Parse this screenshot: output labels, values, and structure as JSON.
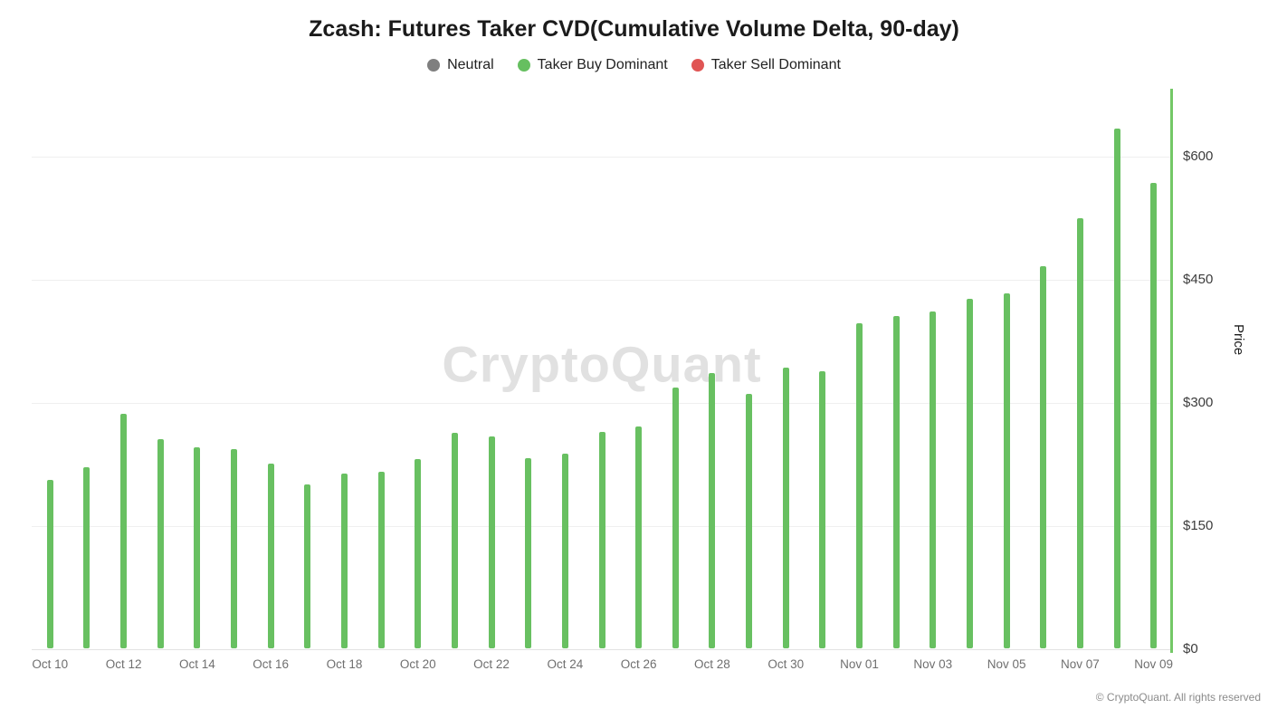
{
  "title": "Zcash: Futures Taker CVD(Cumulative Volume Delta, 90-day)",
  "watermark": "CryptoQuant",
  "footer": "© CryptoQuant. All rights reserved",
  "legend": {
    "items": [
      {
        "label": "Neutral",
        "color": "#7f7f7f"
      },
      {
        "label": "Taker Buy Dominant",
        "color": "#66bf60"
      },
      {
        "label": "Taker Sell Dominant",
        "color": "#e05554"
      }
    ]
  },
  "y_axis": {
    "label": "Price",
    "ticks": [
      {
        "label": "$0",
        "value": 0
      },
      {
        "label": "$150",
        "value": 150
      },
      {
        "label": "$300",
        "value": 300
      },
      {
        "label": "$450",
        "value": 450
      },
      {
        "label": "$600",
        "value": 600
      }
    ]
  },
  "chart_data": {
    "type": "bar",
    "title": "Zcash: Futures Taker CVD(Cumulative Volume Delta, 90-day)",
    "series_name": "Taker Buy Dominant",
    "xlabel": "",
    "ylabel": "Price",
    "ylim": [
      0,
      680
    ],
    "grid": "horizontal",
    "legend_position": "top",
    "bar_color": "#68c061",
    "right_axis_color": "#74c867",
    "x_tick_step": 2,
    "x_tick_labels": [
      "Oct 10",
      "Oct 12",
      "Oct 14",
      "Oct 16",
      "Oct 18",
      "Oct 20",
      "Oct 22",
      "Oct 24",
      "Oct 26",
      "Oct 28",
      "Oct 30",
      "Nov 01",
      "Nov 03",
      "Nov 05",
      "Nov 07",
      "Nov 09"
    ],
    "categories": [
      "Oct 10",
      "Oct 11",
      "Oct 12",
      "Oct 13",
      "Oct 14",
      "Oct 15",
      "Oct 16",
      "Oct 17",
      "Oct 18",
      "Oct 19",
      "Oct 20",
      "Oct 21",
      "Oct 22",
      "Oct 23",
      "Oct 24",
      "Oct 25",
      "Oct 26",
      "Oct 27",
      "Oct 28",
      "Oct 29",
      "Oct 30",
      "Oct 31",
      "Nov 01",
      "Nov 02",
      "Nov 03",
      "Nov 04",
      "Nov 05",
      "Nov 06",
      "Nov 07",
      "Nov 08",
      "Nov 09"
    ],
    "values": [
      205,
      220,
      285,
      255,
      245,
      242,
      225,
      200,
      213,
      215,
      230,
      262,
      258,
      232,
      237,
      263,
      270,
      317,
      335,
      310,
      342,
      337,
      396,
      404,
      410,
      425,
      432,
      465,
      523,
      633,
      567
    ]
  }
}
